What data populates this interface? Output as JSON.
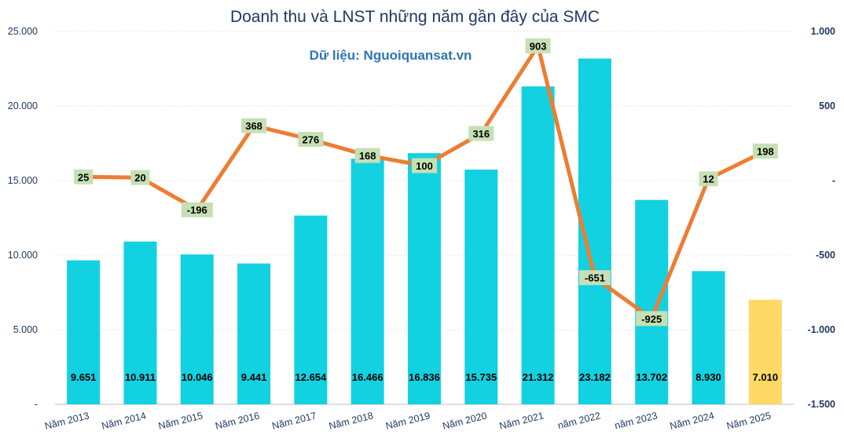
{
  "chart_data": {
    "type": "bar+line",
    "title": "Doanh thu và LNST những năm gần đây của SMC",
    "source_note": "Dữ liệu: Nguoiquansat.vn",
    "categories": [
      "Năm 2013",
      "Năm 2014",
      "Năm 2015",
      "Năm 2016",
      "Năm 2017",
      "Năm 2018",
      "Năm 2019",
      "Năm 2020",
      "Năm 2021",
      "năm 2022",
      "năm 2023",
      "Năm 2024",
      "Năm 2025"
    ],
    "series": [
      {
        "type": "bar",
        "axis": "left",
        "values": [
          9651,
          10911,
          10046,
          9441,
          12654,
          16466,
          16836,
          15735,
          21312,
          23182,
          13702,
          8930,
          7010
        ],
        "labels": [
          "9.651",
          "10.911",
          "10.046",
          "9.441",
          "12.654",
          "16.466",
          "16.836",
          "15.735",
          "21.312",
          "23.182",
          "13.702",
          "8.930",
          "7.010"
        ],
        "color": "#12d1e1",
        "highlight_color": "#ffd966",
        "highlight_index": 12
      },
      {
        "type": "line",
        "axis": "right",
        "values": [
          25,
          20,
          -196,
          368,
          276,
          168,
          100,
          316,
          903,
          -651,
          -925,
          12,
          198
        ],
        "labels": [
          "25",
          "20",
          "-196",
          "368",
          "276",
          "168",
          "100",
          "316",
          "903",
          "-651",
          "-925",
          "12",
          "198"
        ],
        "color": "#ed7d31",
        "label_bg": "#c6e0b4"
      }
    ],
    "y_left": {
      "ylim": [
        0,
        25000
      ],
      "ticks": [
        0,
        5000,
        10000,
        15000,
        20000,
        25000
      ],
      "tick_labels": [
        "-",
        "5.000",
        "10.000",
        "15.000",
        "20.000",
        "25.000"
      ]
    },
    "y_right": {
      "ylim": [
        -1500,
        1000
      ],
      "ticks": [
        -1500,
        -1000,
        -500,
        0,
        500,
        1000
      ],
      "tick_labels": [
        "-1.500",
        "-1.000",
        "-500",
        "-",
        "500",
        "1.000"
      ]
    },
    "grid": true,
    "legend": "none"
  }
}
